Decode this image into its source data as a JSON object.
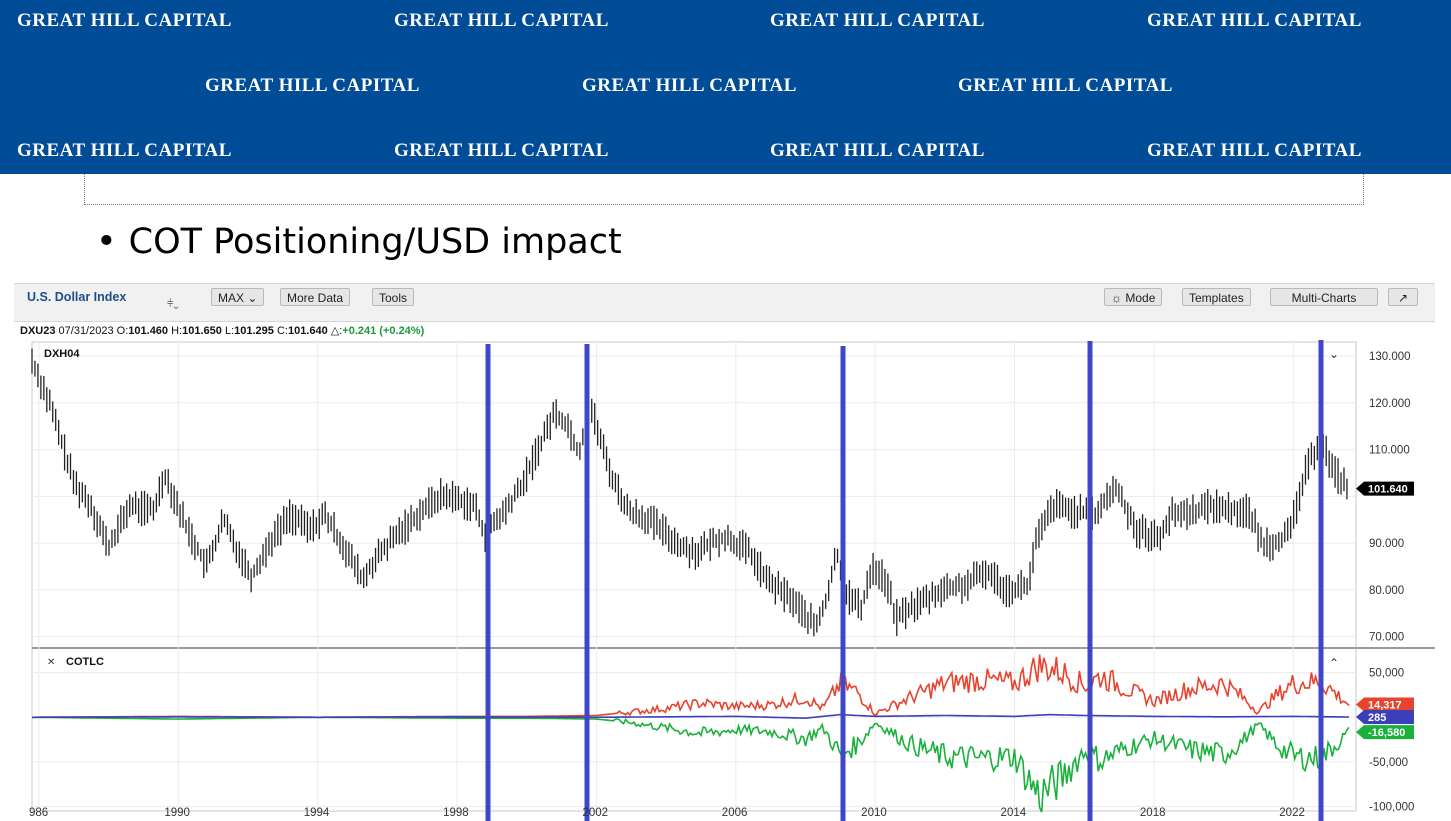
{
  "banner": {
    "text": "GREAT HILL CAPITAL"
  },
  "bullet": {
    "text": "COT Positioning/USD impact"
  },
  "toolbar": {
    "title": "U.S. Dollar Index",
    "max_label": "MAX",
    "more_data_label": "More Data",
    "tools_label": "Tools",
    "mode_label": "Mode",
    "templates_label": "Templates",
    "multi_charts_label": "Multi-Charts"
  },
  "quote": {
    "symbol": "DXU23",
    "date": "07/31/2023",
    "o_label": "O:",
    "o": "101.460",
    "h_label": "H:",
    "h": "101.650",
    "l_label": "L:",
    "l": "101.295",
    "c_label": "C:",
    "c": "101.640",
    "change_label": "△:",
    "change": "+0.241 (+0.24%)"
  },
  "colors": {
    "banner": "#004c97",
    "marker_lines": "#3f46c8",
    "red": "#e8432f",
    "green": "#19b13b",
    "blue": "#3b3fb8",
    "price": "#222222"
  },
  "chart_data": [
    {
      "type": "line",
      "panel_label": "DXH04",
      "x_ticks": [
        "986",
        "1990",
        "1994",
        "1998",
        "2002",
        "2006",
        "2010",
        "2014",
        "2018",
        "2022"
      ],
      "y_ticks": [
        "130.000",
        "120.000",
        "110.000",
        "90.000",
        "80.000",
        "70.000"
      ],
      "ylim": [
        68,
        133
      ],
      "last_label": "101.640",
      "x": [
        1985.8,
        1986.3,
        1987,
        1987.5,
        1988,
        1988.6,
        1989.3,
        1989.6,
        1990.2,
        1990.8,
        1991.3,
        1991.6,
        1992.1,
        1992.7,
        1993.2,
        1993.8,
        1994.2,
        1994.7,
        1995.3,
        1995.6,
        1996.3,
        1997,
        1997.5,
        1997.8,
        1998.5,
        1998.8,
        1999.4,
        1999.9,
        2000.5,
        2000.8,
        2001.2,
        2001.5,
        2001.8,
        2002.4,
        2002.9,
        2003.5,
        2004,
        2004.5,
        2004.9,
        2005.5,
        2005.8,
        2006.4,
        2006.9,
        2007.6,
        2008.3,
        2008.6,
        2008.9,
        2009.2,
        2009.6,
        2009.9,
        2010.3,
        2010.6,
        2011.2,
        2011.5,
        2011.9,
        2012.6,
        2013.2,
        2013.8,
        2014.4,
        2014.6,
        2015.1,
        2015.6,
        2016.3,
        2016.9,
        2017.5,
        2018.1,
        2018.5,
        2019.2,
        2019.7,
        2020.3,
        2020.7,
        2021.1,
        2021.4,
        2021.9,
        2022.3,
        2022.8,
        2023.1,
        2023.6
      ],
      "values": [
        129,
        120,
        103,
        98,
        89,
        98,
        97,
        105,
        94,
        85,
        95,
        90,
        83,
        91,
        96,
        93,
        96,
        90,
        82,
        86,
        92,
        97,
        100,
        100,
        98,
        92,
        97,
        103,
        113,
        118,
        115,
        109,
        120,
        105,
        97,
        95,
        92,
        89,
        88,
        91,
        91,
        88,
        82,
        78,
        72,
        78,
        88,
        79,
        76,
        85,
        82,
        74,
        77,
        78,
        80,
        81,
        84,
        80,
        81,
        90,
        98,
        97,
        96,
        102,
        93,
        91,
        96,
        97,
        98,
        97,
        97,
        90,
        90,
        92,
        104,
        113,
        106,
        101.64
      ]
    },
    {
      "type": "line",
      "panel_label": "COTLC",
      "y_ticks": [
        "50,000",
        "-50,000",
        "-100,000"
      ],
      "ylim": [
        -105000,
        72000
      ],
      "series": [
        {
          "x": [
            1985.8,
            1990,
            1994,
            1998,
            2000,
            2002,
            2003,
            2004,
            2005,
            2006,
            2007,
            2008,
            2008.5,
            2009,
            2009.5,
            2010,
            2011,
            2012,
            2013,
            2014,
            2014.7,
            2015.3,
            2016,
            2016.5,
            2017.2,
            2018,
            2019,
            2020,
            2020.5,
            2021,
            2021.5,
            2022,
            2022.8,
            2023.6
          ],
          "values": [
            0,
            1000,
            0,
            1000,
            1000,
            2000,
            6000,
            10000,
            16000,
            12000,
            14000,
            22000,
            10000,
            38000,
            28000,
            4000,
            22000,
            38000,
            42000,
            38000,
            58000,
            52000,
            36000,
            46000,
            32000,
            18000,
            32000,
            38000,
            24000,
            6000,
            24000,
            38000,
            40000,
            14317
          ],
          "label": "14,317"
        },
        {
          "x": [
            1985.8,
            1990,
            1994,
            1998,
            2000,
            2002,
            2003,
            2004,
            2005,
            2006,
            2007,
            2008,
            2008.5,
            2009,
            2009.5,
            2010,
            2011,
            2012,
            2013,
            2014,
            2014.7,
            2015.3,
            2016,
            2016.5,
            2017.2,
            2018,
            2019,
            2020,
            2020.5,
            2021,
            2021.5,
            2022,
            2022.8,
            2023.6
          ],
          "values": [
            0,
            -2000,
            0,
            -1000,
            -1000,
            -2000,
            -6000,
            -12000,
            -18000,
            -14000,
            -16000,
            -24000,
            -12000,
            -42000,
            -30000,
            -6000,
            -30000,
            -44000,
            -46000,
            -44000,
            -88000,
            -70000,
            -38000,
            -48000,
            -34000,
            -24000,
            -36000,
            -42000,
            -28000,
            -8000,
            -30000,
            -44000,
            -46000,
            -16580
          ],
          "label": "-16,580"
        },
        {
          "x": [
            1985.8,
            1990,
            1994,
            1998,
            2002,
            2006,
            2008,
            2009,
            2010,
            2012,
            2014,
            2015,
            2016,
            2018,
            2020,
            2022,
            2023.6
          ],
          "values": [
            0,
            500,
            0,
            500,
            0,
            1000,
            -1000,
            3000,
            1000,
            2000,
            1000,
            3000,
            2000,
            1000,
            500,
            1000,
            285
          ],
          "label": "285"
        }
      ]
    }
  ]
}
